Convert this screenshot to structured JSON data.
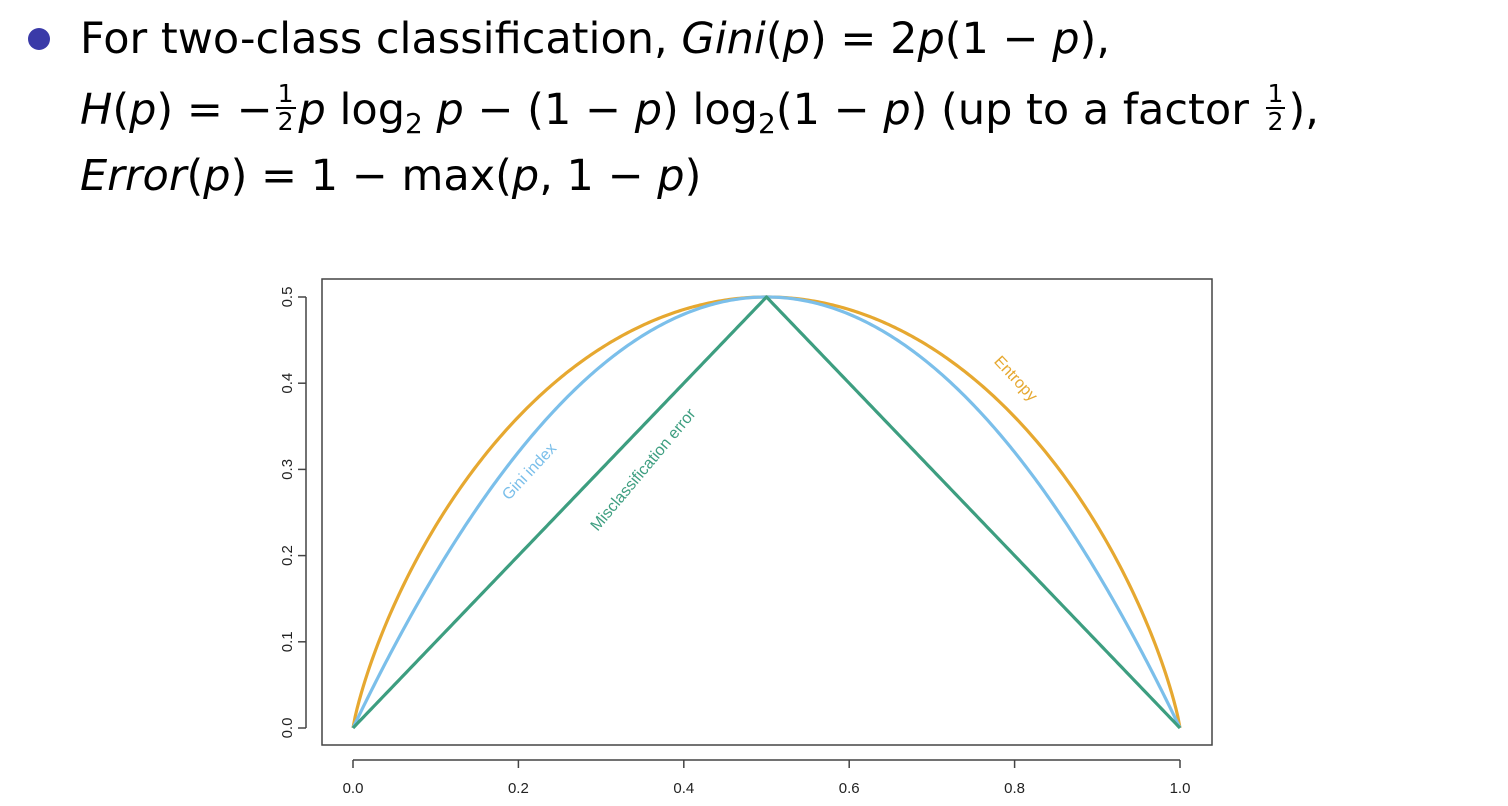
{
  "text": {
    "line1_a": "For two-class classification, ",
    "line1_gini": "Gini",
    "line1_b": "(",
    "line1_p1": "p",
    "line1_c": ") = 2",
    "line1_p2": "p",
    "line1_d": "(1 − ",
    "line1_p3": "p",
    "line1_e": "),",
    "line2_H": "H",
    "line2_a": "(",
    "line2_p1": "p",
    "line2_b": ") = −",
    "frac_num": "1",
    "frac_den": "2",
    "line2_p2": "p",
    "line2_log1": " log",
    "log_base": "2",
    "line2_p3": " p",
    "line2_c": " − (1 − ",
    "line2_p4": "p",
    "line2_d": ") log",
    "log_base2": "2",
    "line2_e": "(1 − ",
    "line2_p5": "p",
    "line2_f": ") (up to a factor ",
    "frac2_num": "1",
    "frac2_den": "2",
    "line2_g": "),",
    "line3_err": "Error",
    "line3_a": "(",
    "line3_p1": "p",
    "line3_b": ") = 1 − max(",
    "line3_p2": "p",
    "line3_c": ", 1 − ",
    "line3_p3": "p",
    "line3_d": ")"
  },
  "colors": {
    "bullet": "#3a3aa8",
    "entropy": "#e6a830",
    "gini": "#7bbfea",
    "error": "#3d9e80"
  },
  "chart_data": {
    "type": "line",
    "x_range": [
      0,
      1
    ],
    "xlim": [
      0,
      1
    ],
    "ylim": [
      0,
      0.5
    ],
    "xticks": [
      "0.0",
      "0.2",
      "0.4",
      "0.6",
      "0.8",
      "1.0"
    ],
    "yticks": [
      "0.0",
      "0.1",
      "0.2",
      "0.3",
      "0.4",
      "0.5"
    ],
    "grid": false,
    "series": [
      {
        "name": "Entropy",
        "formula": "0.5 * (-p*log2(p) - (1-p)*log2(1-p))",
        "color": "#e6a830"
      },
      {
        "name": "Gini index",
        "formula": "2*p*(1-p)",
        "color": "#7bbfea"
      },
      {
        "name": "Misclassification error",
        "formula": "1 - max(p, 1-p)",
        "color": "#3d9e80"
      }
    ]
  }
}
